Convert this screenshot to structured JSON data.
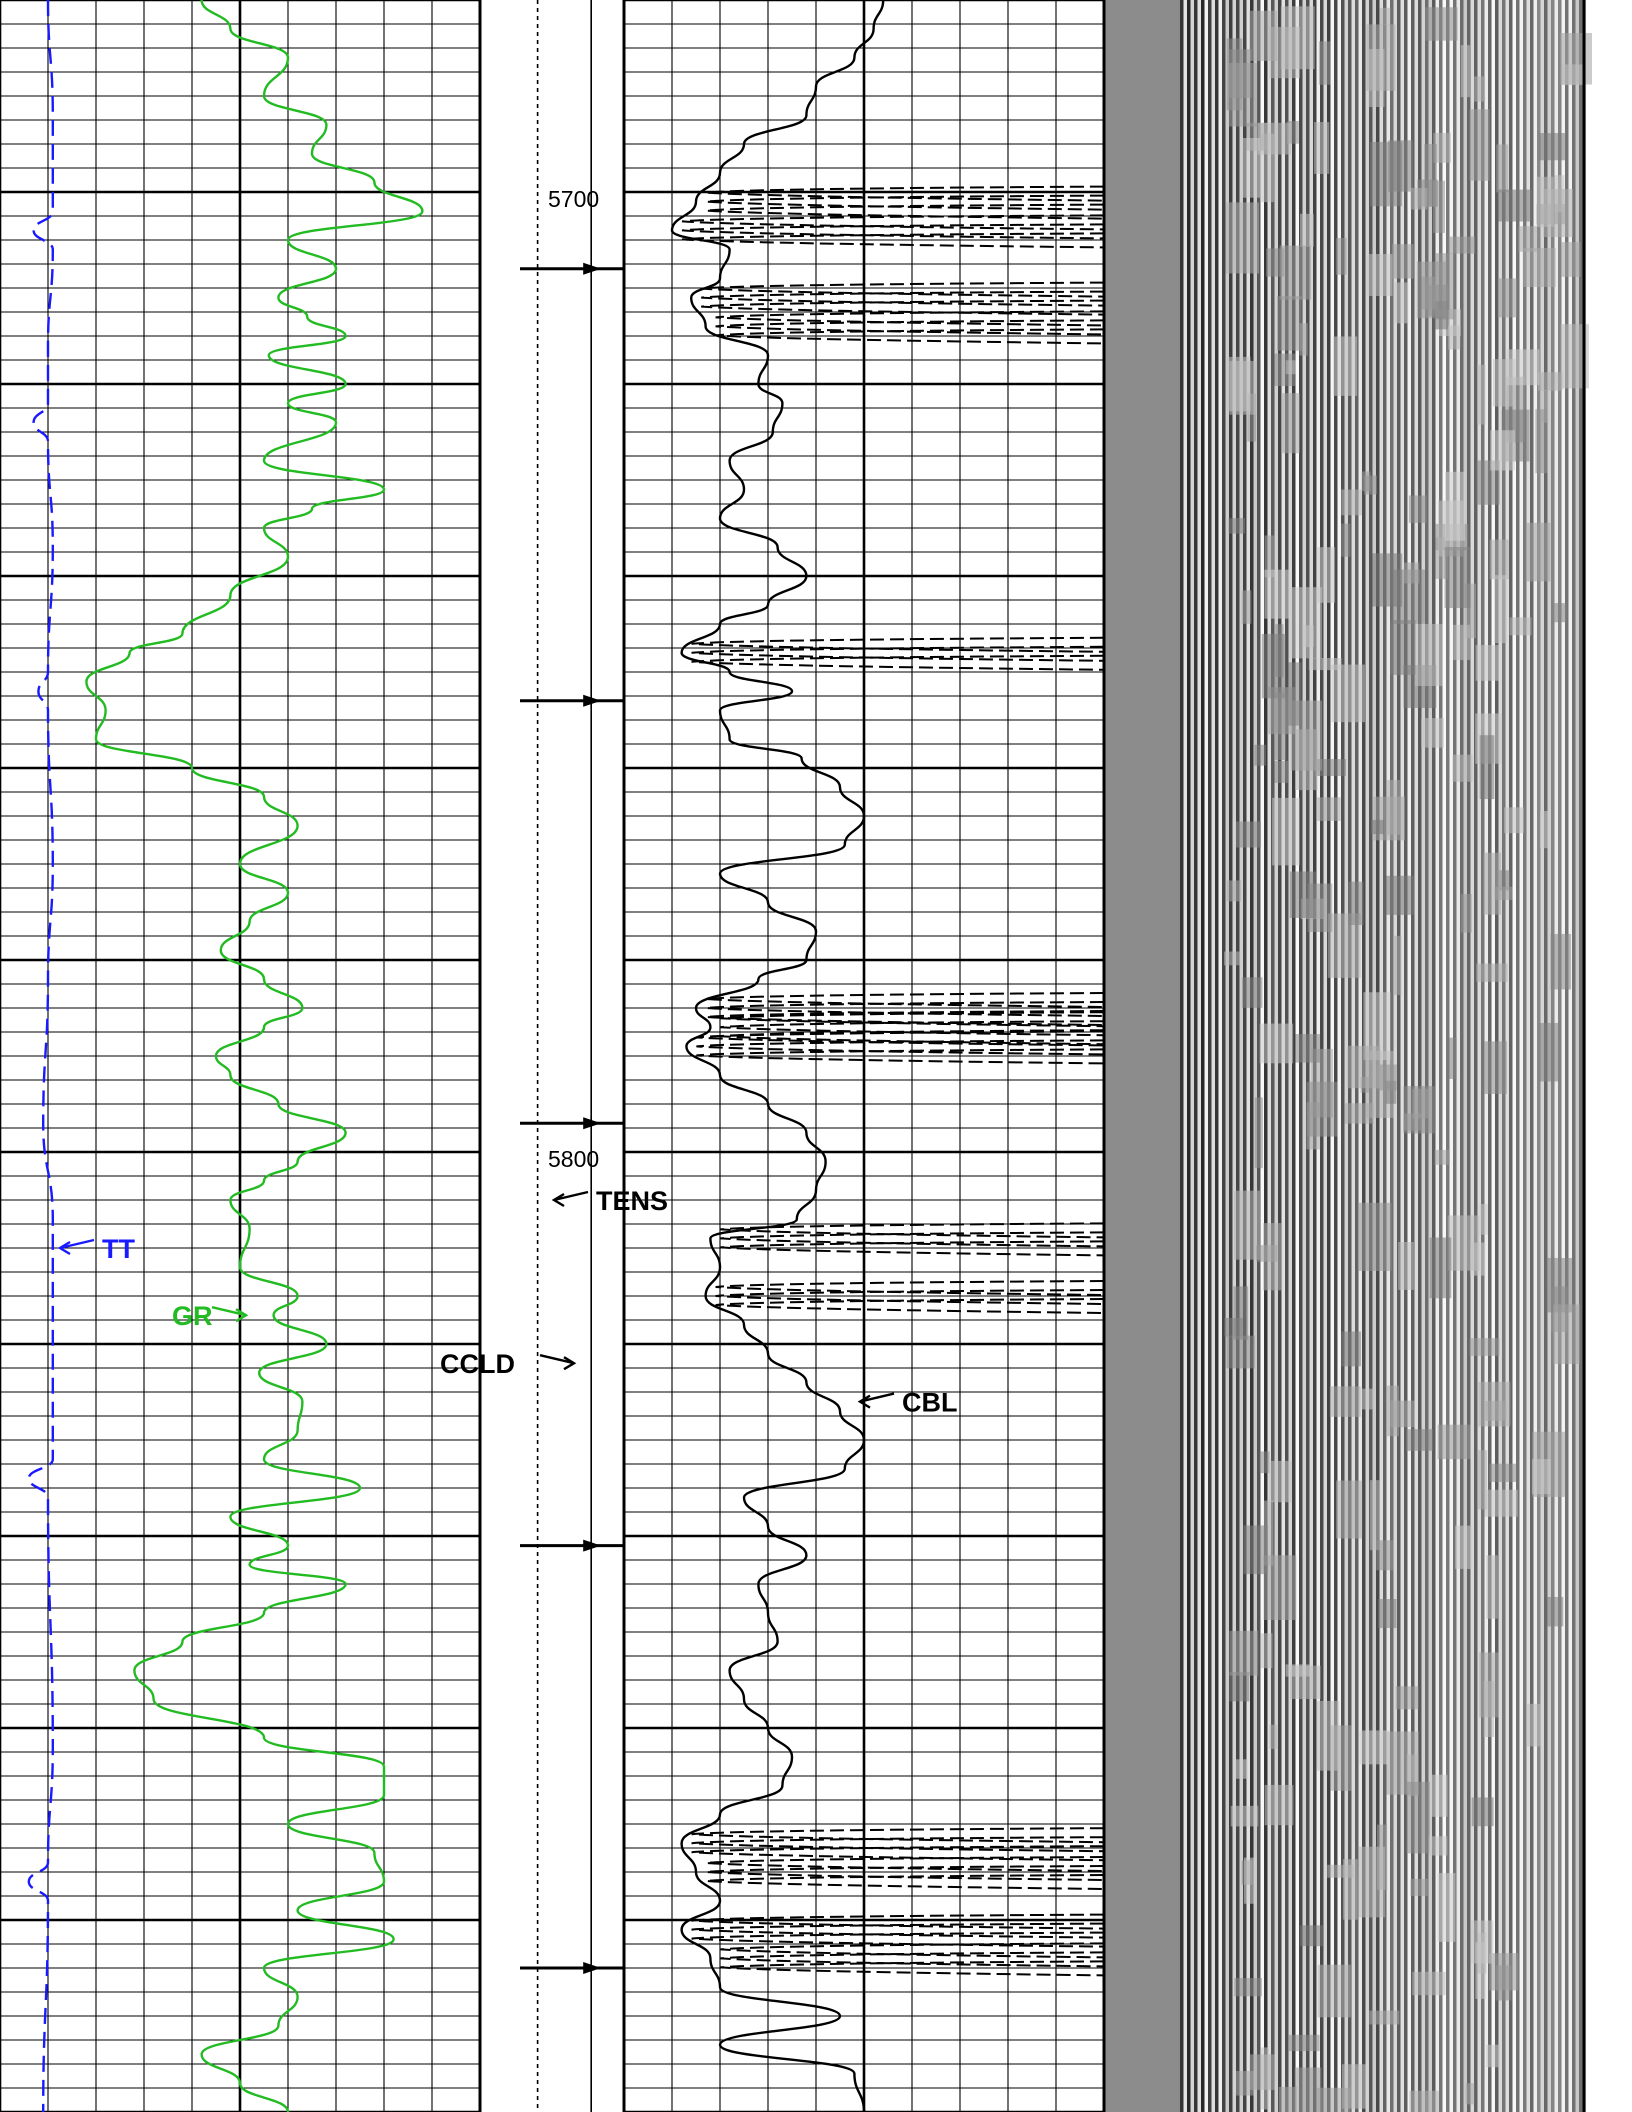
{
  "chart_data": {
    "type": "line",
    "title": "",
    "depth_axis": {
      "label": "",
      "tick_labels": [
        "5700",
        "5800"
      ],
      "range": [
        5678,
        5898
      ]
    },
    "colors": {
      "GR": "#22bb22",
      "TT": "#1a1aff",
      "CBL": "#000000",
      "TENS": "#000000",
      "CCLD": "#000000",
      "grid": "#000000",
      "vdl_background": "#8a8a8a"
    },
    "curves": [
      {
        "name": "GR",
        "track": "left",
        "depth": [
          5678,
          5681,
          5684,
          5688,
          5691,
          5694,
          5697,
          5700,
          5703,
          5706,
          5709,
          5711,
          5713,
          5715,
          5718,
          5720,
          5722,
          5726,
          5729,
          5731,
          5733,
          5736,
          5740,
          5744,
          5746,
          5749,
          5752,
          5755,
          5758,
          5761,
          5764,
          5768,
          5771,
          5774,
          5777,
          5780,
          5783,
          5785,
          5788,
          5790,
          5793,
          5796,
          5799,
          5801,
          5803,
          5806,
          5810,
          5813,
          5815,
          5818,
          5821,
          5824,
          5827,
          5830,
          5833,
          5836,
          5839,
          5841,
          5843,
          5846,
          5849,
          5852,
          5855,
          5859,
          5862,
          5865,
          5868,
          5871,
          5874,
          5877,
          5880,
          5883,
          5886,
          5889,
          5892,
          5895,
          5898
        ],
        "value": [
          0.42,
          0.48,
          0.6,
          0.55,
          0.68,
          0.65,
          0.78,
          0.88,
          0.6,
          0.7,
          0.58,
          0.64,
          0.72,
          0.56,
          0.72,
          0.6,
          0.7,
          0.55,
          0.8,
          0.65,
          0.55,
          0.6,
          0.48,
          0.38,
          0.27,
          0.18,
          0.22,
          0.2,
          0.4,
          0.55,
          0.62,
          0.5,
          0.6,
          0.52,
          0.46,
          0.55,
          0.63,
          0.55,
          0.45,
          0.48,
          0.58,
          0.72,
          0.62,
          0.55,
          0.48,
          0.52,
          0.5,
          0.62,
          0.57,
          0.68,
          0.54,
          0.63,
          0.62,
          0.55,
          0.75,
          0.48,
          0.6,
          0.52,
          0.72,
          0.55,
          0.38,
          0.28,
          0.32,
          0.55,
          0.8,
          0.8,
          0.6,
          0.78,
          0.8,
          0.62,
          0.82,
          0.55,
          0.62,
          0.58,
          0.42,
          0.5,
          0.6
        ]
      },
      {
        "name": "TT",
        "track": "left",
        "depth": [
          5678,
          5690,
          5700,
          5702,
          5704,
          5714,
          5720,
          5722,
          5724,
          5735,
          5748,
          5750,
          5752,
          5768,
          5780,
          5795,
          5805,
          5830,
          5832,
          5834,
          5860,
          5872,
          5874,
          5876,
          5898
        ],
        "value": [
          0.1,
          0.11,
          0.11,
          0.07,
          0.11,
          0.1,
          0.1,
          0.07,
          0.1,
          0.11,
          0.1,
          0.08,
          0.1,
          0.11,
          0.1,
          0.09,
          0.11,
          0.11,
          0.06,
          0.1,
          0.11,
          0.1,
          0.06,
          0.1,
          0.09
        ]
      },
      {
        "name": "CBL",
        "track": "right",
        "depth": [
          5678,
          5681,
          5684,
          5687,
          5690,
          5693,
          5696,
          5699,
          5702,
          5704,
          5707,
          5709,
          5712,
          5715,
          5718,
          5720,
          5723,
          5726,
          5729,
          5732,
          5735,
          5738,
          5741,
          5743,
          5746,
          5748,
          5750,
          5752,
          5755,
          5757,
          5760,
          5763,
          5766,
          5769,
          5772,
          5775,
          5778,
          5780,
          5783,
          5785,
          5787,
          5790,
          5793,
          5796,
          5799,
          5802,
          5805,
          5807,
          5810,
          5813,
          5816,
          5819,
          5822,
          5825,
          5828,
          5831,
          5834,
          5837,
          5840,
          5843,
          5846,
          5849,
          5852,
          5855,
          5858,
          5861,
          5864,
          5867,
          5870,
          5873,
          5876,
          5879,
          5882,
          5885,
          5888,
          5891,
          5894,
          5898
        ],
        "value": [
          0.54,
          0.52,
          0.48,
          0.4,
          0.38,
          0.25,
          0.2,
          0.15,
          0.1,
          0.22,
          0.2,
          0.14,
          0.17,
          0.3,
          0.28,
          0.33,
          0.31,
          0.22,
          0.25,
          0.2,
          0.32,
          0.38,
          0.3,
          0.2,
          0.12,
          0.22,
          0.35,
          0.2,
          0.22,
          0.37,
          0.45,
          0.5,
          0.46,
          0.2,
          0.3,
          0.4,
          0.38,
          0.28,
          0.15,
          0.18,
          0.13,
          0.2,
          0.3,
          0.38,
          0.42,
          0.4,
          0.36,
          0.18,
          0.2,
          0.17,
          0.25,
          0.3,
          0.38,
          0.45,
          0.5,
          0.46,
          0.25,
          0.3,
          0.38,
          0.28,
          0.3,
          0.32,
          0.22,
          0.25,
          0.3,
          0.35,
          0.33,
          0.2,
          0.12,
          0.15,
          0.2,
          0.12,
          0.18,
          0.2,
          0.45,
          0.2,
          0.48,
          0.5
        ]
      },
      {
        "name": "TENS",
        "track": "depth",
        "depth": [
          5678,
          5898
        ],
        "value": [
          0.4,
          0.4
        ]
      }
    ],
    "curve_labels": [
      {
        "name": "TT",
        "depth": 5808
      },
      {
        "name": "GR",
        "depth": 5815
      },
      {
        "name": "TENS",
        "depth": 5803
      },
      {
        "name": "CCLD",
        "depth": 5820
      },
      {
        "name": "CBL",
        "depth": 5824
      }
    ],
    "collar_markers_depth": [
      5706,
      5751,
      5795,
      5839,
      5883
    ],
    "grid": true,
    "legend": "none",
    "tracks": [
      {
        "name": "left",
        "range": [
          0,
          1
        ]
      },
      {
        "name": "depth",
        "range": [
          0,
          1
        ]
      },
      {
        "name": "right",
        "range": [
          0,
          1
        ]
      },
      {
        "name": "vdl",
        "range": [
          0,
          1
        ]
      }
    ]
  }
}
